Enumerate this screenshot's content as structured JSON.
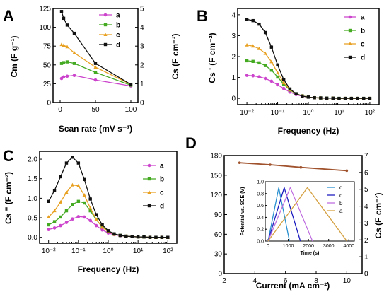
{
  "colors": {
    "a": "#cc44cc",
    "b": "#44aa22",
    "c": "#e8a020",
    "d": "#111111",
    "D_main": "#a0522d",
    "inset_d": "#2a90d0",
    "inset_c": "#2020c0",
    "inset_b": "#c070e0",
    "inset_a": "#d4a040"
  },
  "chart_data": [
    {
      "panel": "A",
      "type": "line",
      "title": "",
      "xlabel": "Scan rate (mV s⁻¹)",
      "ylabel_left": "Cm (F g⁻¹)",
      "ylabel_right": "Cs (F cm⁻²)",
      "xlim": [
        -10,
        110
      ],
      "xticks": [
        "0",
        "50",
        "100"
      ],
      "ylim_left": [
        0,
        125
      ],
      "yticks_left": [
        "0",
        "25",
        "50",
        "75",
        "100",
        "125"
      ],
      "ylim_right": [
        0,
        5
      ],
      "yticks_right": [
        "0",
        "1",
        "2",
        "3",
        "4",
        "5"
      ],
      "legend": "top-right",
      "series": [
        {
          "name": "a",
          "x": [
            2,
            5,
            10,
            20,
            50,
            100
          ],
          "y": [
            32,
            34,
            35,
            36,
            30,
            22
          ]
        },
        {
          "name": "b",
          "x": [
            2,
            5,
            10,
            20,
            50,
            100
          ],
          "y": [
            52,
            53,
            54,
            52,
            40,
            23
          ]
        },
        {
          "name": "c",
          "x": [
            2,
            5,
            10,
            20,
            50,
            100
          ],
          "y": [
            77,
            76,
            74,
            66,
            47,
            24
          ]
        },
        {
          "name": "d",
          "x": [
            2,
            5,
            10,
            20,
            50,
            100
          ],
          "y": [
            121,
            112,
            103,
            92,
            52,
            24
          ]
        }
      ]
    },
    {
      "panel": "B",
      "type": "line",
      "title": "",
      "xlabel": "Frequency (Hz)",
      "ylabel": "Cs ' (F cm⁻²)",
      "xscale": "log",
      "xlim": [
        0.005,
        200
      ],
      "xticks": [
        "10⁻²",
        "10⁻¹",
        "10⁰",
        "10¹",
        "10²"
      ],
      "ylim": [
        -0.3,
        4.3
      ],
      "yticks": [
        "0",
        "1",
        "2",
        "3",
        "4"
      ],
      "legend": "top-right",
      "series": [
        {
          "name": "a",
          "x": [
            0.01,
            0.0158,
            0.0251,
            0.0398,
            0.0631,
            0.1,
            0.158,
            0.251,
            0.398,
            0.631,
            1,
            1.58,
            2.51,
            3.98,
            6.31,
            10,
            15.8,
            25.1,
            39.8,
            63.1,
            100
          ],
          "y": [
            1.1,
            1.08,
            1.03,
            0.95,
            0.82,
            0.65,
            0.47,
            0.3,
            0.18,
            0.1,
            0.06,
            0.03,
            0.02,
            0.01,
            0.01,
            0.0,
            0.0,
            0.0,
            0.0,
            0.0,
            0.0
          ]
        },
        {
          "name": "b",
          "x": [
            0.01,
            0.0158,
            0.0251,
            0.0398,
            0.0631,
            0.1,
            0.158,
            0.251,
            0.398,
            0.631,
            1,
            1.58,
            2.51,
            3.98,
            6.31,
            10,
            15.8,
            25.1,
            39.8,
            63.1,
            100
          ],
          "y": [
            1.8,
            1.77,
            1.7,
            1.57,
            1.35,
            1.02,
            0.68,
            0.4,
            0.22,
            0.12,
            0.06,
            0.03,
            0.02,
            0.01,
            0.01,
            0.0,
            0.0,
            0.0,
            0.0,
            0.0,
            0.0
          ]
        },
        {
          "name": "c",
          "x": [
            0.01,
            0.0158,
            0.0251,
            0.0398,
            0.0631,
            0.1,
            0.158,
            0.251,
            0.398,
            0.631,
            1,
            1.58,
            2.51,
            3.98,
            6.31,
            10,
            15.8,
            25.1,
            39.8,
            63.1,
            100
          ],
          "y": [
            2.55,
            2.5,
            2.38,
            2.15,
            1.75,
            1.22,
            0.75,
            0.42,
            0.22,
            0.12,
            0.06,
            0.03,
            0.02,
            0.01,
            0.01,
            0.0,
            0.0,
            0.0,
            0.0,
            0.0,
            0.0
          ]
        },
        {
          "name": "d",
          "x": [
            0.01,
            0.0158,
            0.0251,
            0.0398,
            0.0631,
            0.1,
            0.158,
            0.251,
            0.398,
            0.631,
            1,
            1.58,
            2.51,
            3.98,
            6.31,
            10,
            15.8,
            25.1,
            39.8,
            63.1,
            100
          ],
          "y": [
            3.78,
            3.72,
            3.55,
            3.15,
            2.45,
            1.6,
            0.9,
            0.45,
            0.22,
            0.11,
            0.06,
            0.03,
            0.02,
            0.01,
            0.01,
            0.0,
            0.0,
            0.0,
            0.0,
            0.0,
            0.0
          ]
        }
      ]
    },
    {
      "panel": "C",
      "type": "line",
      "title": "",
      "xlabel": "Frequency (Hz)",
      "ylabel": "Cs '' (F cm⁻²)",
      "xscale": "log",
      "xlim": [
        0.005,
        200
      ],
      "xticks": [
        "10⁻²",
        "10⁻¹",
        "10⁰",
        "10¹",
        "10²"
      ],
      "ylim": [
        -0.15,
        2.2
      ],
      "yticks": [
        "0.0",
        "0.5",
        "1.0",
        "1.5",
        "2.0"
      ],
      "legend": "top-right",
      "series": [
        {
          "name": "a",
          "x": [
            0.01,
            0.0158,
            0.0251,
            0.0398,
            0.0631,
            0.1,
            0.158,
            0.251,
            0.398,
            0.631,
            1,
            1.58,
            2.51,
            3.98,
            6.31,
            10,
            15.8,
            25.1,
            39.8,
            63.1,
            100
          ],
          "y": [
            0.2,
            0.24,
            0.3,
            0.38,
            0.47,
            0.53,
            0.52,
            0.43,
            0.3,
            0.19,
            0.11,
            0.07,
            0.04,
            0.03,
            0.02,
            0.01,
            0.01,
            0.0,
            0.0,
            0.0,
            0.0
          ]
        },
        {
          "name": "b",
          "x": [
            0.01,
            0.0158,
            0.0251,
            0.0398,
            0.0631,
            0.1,
            0.158,
            0.251,
            0.398,
            0.631,
            1,
            1.58,
            2.51,
            3.98,
            6.31,
            10,
            15.8,
            25.1,
            39.8,
            63.1,
            100
          ],
          "y": [
            0.32,
            0.4,
            0.52,
            0.68,
            0.84,
            0.92,
            0.88,
            0.68,
            0.45,
            0.27,
            0.15,
            0.08,
            0.05,
            0.03,
            0.02,
            0.01,
            0.01,
            0.0,
            0.0,
            0.0,
            0.0
          ]
        },
        {
          "name": "c",
          "x": [
            0.01,
            0.0158,
            0.0251,
            0.0398,
            0.0631,
            0.1,
            0.158,
            0.251,
            0.398,
            0.631,
            1,
            1.58,
            2.51,
            3.98,
            6.31,
            10,
            15.8,
            25.1,
            39.8,
            63.1,
            100
          ],
          "y": [
            0.52,
            0.68,
            0.9,
            1.15,
            1.34,
            1.32,
            1.08,
            0.75,
            0.46,
            0.26,
            0.14,
            0.08,
            0.05,
            0.03,
            0.02,
            0.01,
            0.01,
            0.0,
            0.0,
            0.0,
            0.0
          ]
        },
        {
          "name": "d",
          "x": [
            0.01,
            0.0158,
            0.0251,
            0.0398,
            0.0631,
            0.1,
            0.158,
            0.251,
            0.398,
            0.631,
            1,
            1.58,
            2.51,
            3.98,
            6.31,
            10,
            15.8,
            25.1,
            39.8,
            63.1,
            100
          ],
          "y": [
            0.92,
            1.2,
            1.55,
            1.9,
            2.05,
            1.9,
            1.48,
            0.98,
            0.58,
            0.32,
            0.17,
            0.09,
            0.05,
            0.03,
            0.02,
            0.01,
            0.01,
            0.0,
            0.0,
            0.0,
            0.0
          ]
        }
      ]
    },
    {
      "panel": "D",
      "type": "line",
      "title": "",
      "xlabel": "Current (mA cm⁻²)",
      "ylabel_right": "Cs (F cm⁻²)",
      "xlim": [
        2,
        11
      ],
      "xticks": [
        "2",
        "4",
        "6",
        "8",
        "10"
      ],
      "ylim_left": [
        0,
        180
      ],
      "yticks_left": [
        "0",
        "30",
        "60",
        "90",
        "120",
        "150",
        "180"
      ],
      "ylim_right": [
        0,
        7
      ],
      "yticks_right": [
        "0",
        "1",
        "2",
        "3",
        "4",
        "5",
        "6",
        "7"
      ],
      "series": [
        {
          "name": "",
          "x": [
            3,
            5,
            7,
            10
          ],
          "y": [
            169,
            166,
            162,
            157
          ]
        }
      ],
      "inset": {
        "xlabel": "Time (s)",
        "ylabel": "Potential vs. SCE (V)",
        "xlim": [
          0,
          4200
        ],
        "xticks": [
          "0",
          "1000",
          "2000",
          "3000",
          "4000"
        ],
        "ylim": [
          0,
          1.0
        ],
        "yticks": [
          "0.0",
          "0.2",
          "0.4",
          "0.6",
          "0.8",
          "1.0"
        ],
        "legend": "top-right",
        "series": [
          {
            "name": "d",
            "x": [
              0,
              530,
              1060
            ],
            "y": [
              0,
              0.9,
              0
            ]
          },
          {
            "name": "c",
            "x": [
              0,
              800,
              1600
            ],
            "y": [
              0,
              0.9,
              0
            ]
          },
          {
            "name": "b",
            "x": [
              0,
              1100,
              2200
            ],
            "y": [
              0,
              0.9,
              0
            ]
          },
          {
            "name": "a",
            "x": [
              0,
              1950,
              3900
            ],
            "y": [
              0,
              0.9,
              0
            ]
          }
        ]
      }
    }
  ]
}
